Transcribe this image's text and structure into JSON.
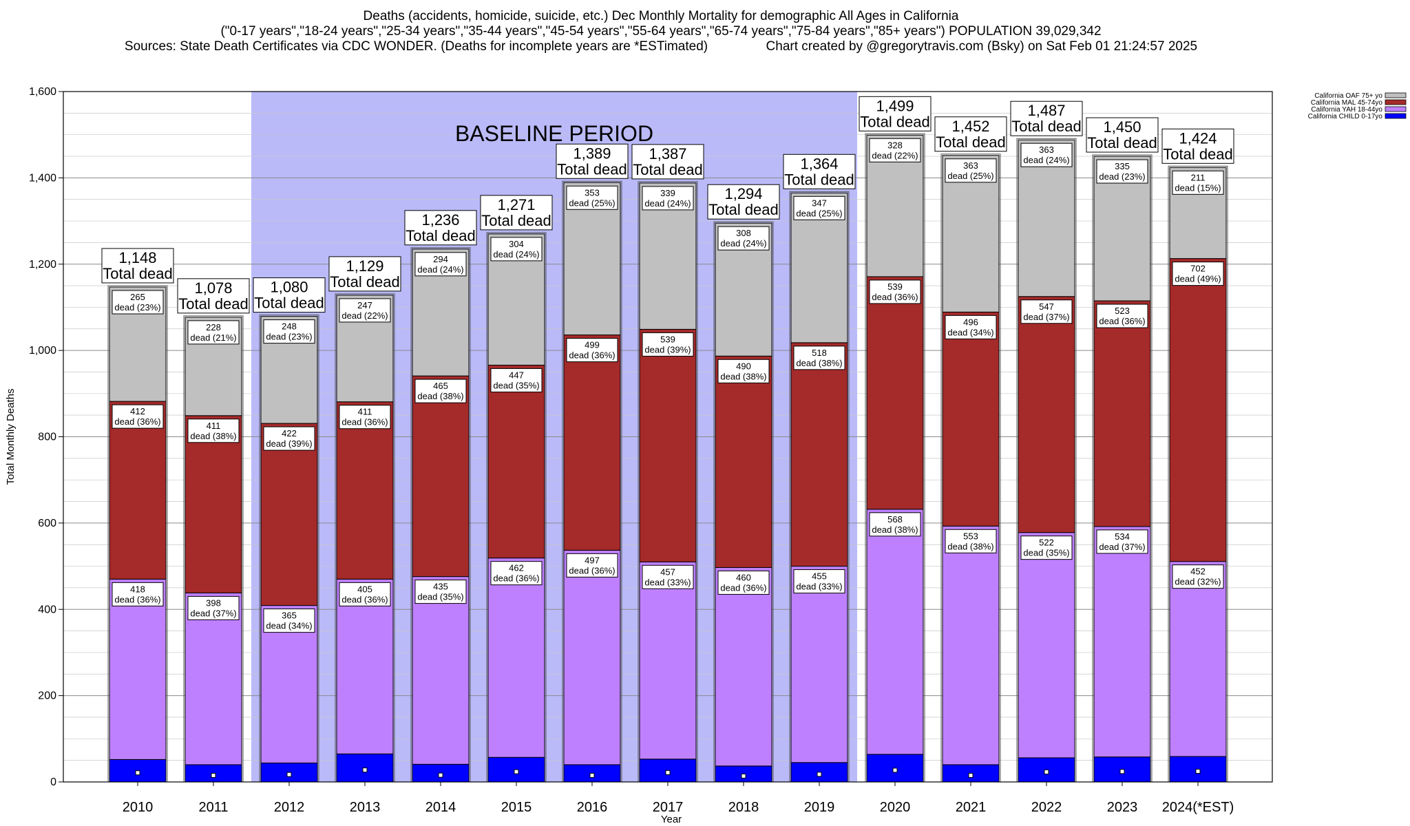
{
  "header": {
    "line1": "Deaths (accidents, homicide, suicide, etc.) Dec Monthly Mortality for demographic All Ages in California",
    "line2": "(\"0-17 years\",\"18-24 years\",\"25-34 years\",\"35-44 years\",\"45-54 years\",\"55-64 years\",\"65-74 years\",\"75-84 years\",\"85+ years\") POPULATION 39,029,342",
    "line3": "Sources: State Death Certificates via CDC WONDER. (Deaths for incomplete years are *ESTimated)                Chart created by @gregorytravis.com (Bsky) on Sat Feb 01 21:24:57 2025"
  },
  "colors": {
    "child": "#0000ff",
    "yah": "#bf80ff",
    "mal": "#a52a2a",
    "oaf": "#c0c0c0",
    "baseline_shade": "#babaf9"
  },
  "chart_data": {
    "type": "bar",
    "stacked": true,
    "categories": [
      "2010",
      "2011",
      "2012",
      "2013",
      "2014",
      "2015",
      "2016",
      "2017",
      "2018",
      "2019",
      "2020",
      "2021",
      "2022",
      "2023",
      "2024(*EST)"
    ],
    "series": [
      {
        "name": "California CHILD 0-17yo",
        "values": [
          52,
          40,
          44,
          65,
          41,
          57,
          40,
          53,
          37,
          45,
          64,
          40,
          56,
          58,
          59
        ]
      },
      {
        "name": "California YAH 18-44yo",
        "values": [
          418,
          398,
          365,
          405,
          435,
          462,
          497,
          457,
          460,
          455,
          568,
          553,
          522,
          534,
          452
        ]
      },
      {
        "name": "California MAL 45-74yo",
        "values": [
          412,
          411,
          422,
          411,
          465,
          447,
          499,
          539,
          490,
          518,
          539,
          496,
          547,
          523,
          702
        ]
      },
      {
        "name": "California OAF 75+ yo",
        "values": [
          265,
          228,
          248,
          247,
          294,
          304,
          353,
          339,
          308,
          347,
          328,
          363,
          363,
          335,
          211
        ]
      }
    ],
    "percent_labels": {
      "yah": [
        "36%",
        "37%",
        "34%",
        "36%",
        "35%",
        "36%",
        "36%",
        "33%",
        "36%",
        "33%",
        "38%",
        "38%",
        "35%",
        "37%",
        "32%"
      ],
      "mal": [
        "36%",
        "38%",
        "39%",
        "36%",
        "38%",
        "35%",
        "36%",
        "39%",
        "38%",
        "38%",
        "36%",
        "34%",
        "37%",
        "36%",
        "49%"
      ],
      "oaf": [
        "23%",
        "21%",
        "23%",
        "22%",
        "24%",
        "24%",
        "25%",
        "24%",
        "24%",
        "25%",
        "22%",
        "25%",
        "24%",
        "23%",
        "15%"
      ]
    },
    "totals": [
      1148,
      1078,
      1080,
      1129,
      1236,
      1271,
      1389,
      1387,
      1294,
      1364,
      1499,
      1452,
      1487,
      1450,
      1424
    ],
    "total_label": "Total dead",
    "segment_label_word": "dead",
    "baseline_label": "BASELINE PERIOD",
    "baseline_range": [
      "2012",
      "2019"
    ],
    "ylabel": "Total Monthly Deaths",
    "xlabel": "Year",
    "ylim": [
      0,
      1600
    ],
    "yticks": [
      "0",
      "200",
      "400",
      "600",
      "800",
      "1,000",
      "1,200",
      "1,400",
      "1,600"
    ],
    "grid": true,
    "legend_position": "top-right outside plot"
  }
}
